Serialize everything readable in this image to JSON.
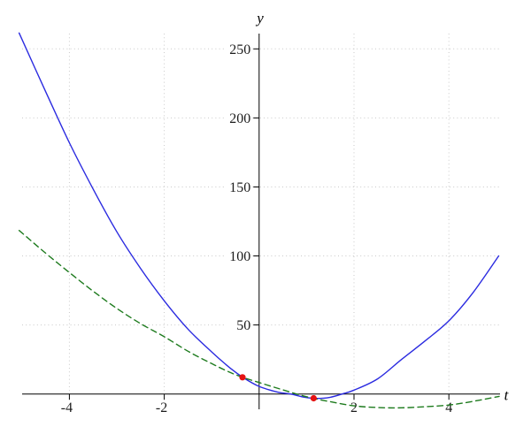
{
  "figure": {
    "background": "#ffffff",
    "xlabel": "t",
    "ylabel": "y"
  },
  "chart_data": {
    "type": "line",
    "title": "",
    "xlabel": "t",
    "ylabel": "y",
    "xlim": [
      -5.3,
      5.6
    ],
    "ylim": [
      -17,
      272
    ],
    "x_ticks": [
      -4,
      -2,
      2,
      4
    ],
    "y_ticks": [
      50,
      100,
      150,
      200,
      250
    ],
    "grid": true,
    "grid_color": "#c9c9c9",
    "axis_color": "#000000",
    "tick_label_color": "#1c1c1c",
    "legend": "none",
    "series": [
      {
        "name": "blue-solid-curve",
        "style": "solid",
        "color": "#2b2be0",
        "points": [
          [
            -5.06,
            261.5
          ],
          [
            -4.5,
            219
          ],
          [
            -4,
            182
          ],
          [
            -3.5,
            148.5
          ],
          [
            -3,
            117.5
          ],
          [
            -2.5,
            91
          ],
          [
            -2,
            67.5
          ],
          [
            -1.5,
            47
          ],
          [
            -1,
            30.5
          ],
          [
            -0.6,
            18.5
          ],
          [
            -0.32,
            11.6
          ],
          [
            0,
            5.5
          ],
          [
            0.4,
            1.3
          ],
          [
            0.66,
            0
          ],
          [
            0.95,
            -2.3
          ],
          [
            1.2,
            -3.2
          ],
          [
            1.5,
            -2.4
          ],
          [
            1.75,
            0
          ],
          [
            2,
            2.8
          ],
          [
            2.5,
            11
          ],
          [
            3,
            25
          ],
          [
            3.5,
            38.5
          ],
          [
            4,
            53
          ],
          [
            4.5,
            73
          ],
          [
            5.05,
            100
          ]
        ]
      },
      {
        "name": "green-dashed-curve",
        "style": "dashed",
        "color": "#1e7b1e",
        "dash": [
          6.5,
          4.5
        ],
        "points": [
          [
            -5.06,
            118.5
          ],
          [
            -4.5,
            102
          ],
          [
            -4,
            88
          ],
          [
            -3.5,
            74.5
          ],
          [
            -3,
            62
          ],
          [
            -2.5,
            51
          ],
          [
            -2,
            41.5
          ],
          [
            -1.5,
            31
          ],
          [
            -1,
            22
          ],
          [
            -0.5,
            14
          ],
          [
            0,
            8.3
          ],
          [
            0.5,
            3
          ],
          [
            1,
            -2
          ],
          [
            1.5,
            -5.6
          ],
          [
            2,
            -8.6
          ],
          [
            2.5,
            -9.8
          ],
          [
            3,
            -10
          ],
          [
            3.5,
            -9.2
          ],
          [
            4,
            -8
          ],
          [
            4.5,
            -5.4
          ],
          [
            5.06,
            -1.7
          ]
        ]
      }
    ],
    "markers": {
      "name": "intersection-points",
      "color": "#e51212",
      "radius": 3.6,
      "points": [
        [
          -0.35,
          12.1
        ],
        [
          1.15,
          -3.05
        ]
      ]
    }
  }
}
